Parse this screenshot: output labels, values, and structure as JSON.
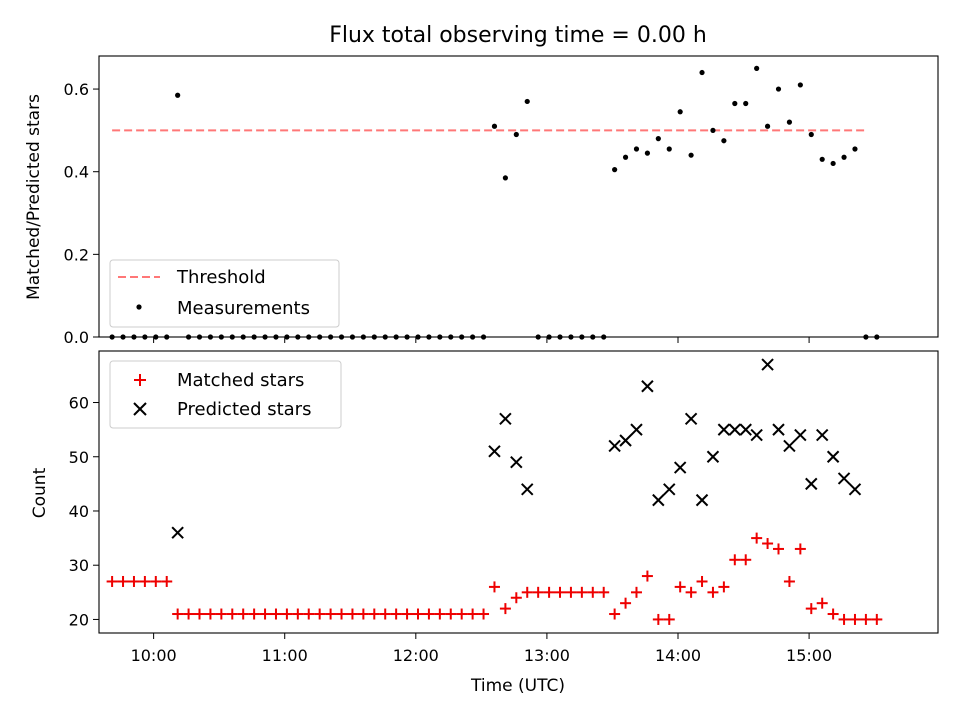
{
  "figure": {
    "title": "Flux total observing time = 0.00 h",
    "xlabel": "Time (UTC)",
    "x_ticks": [
      "10:00",
      "11:00",
      "12:00",
      "13:00",
      "14:00",
      "15:00"
    ],
    "colors": {
      "threshold": "#ff7777",
      "measurement": "#000000",
      "matched": "#ee0000",
      "predicted": "#000000"
    }
  },
  "chart_data": [
    {
      "type": "scatter",
      "panel": "top",
      "ylabel": "Matched/Predicted stars",
      "ylim": [
        0.0,
        0.68
      ],
      "xlim": [
        "09:35",
        "15:59"
      ],
      "y_ticks": [
        "0.0",
        "0.2",
        "0.4",
        "0.6"
      ],
      "legend": {
        "placement": "lower-left",
        "entries": [
          "Threshold",
          "Measurements"
        ]
      },
      "threshold": {
        "name": "Threshold",
        "value": 0.5,
        "x_range": [
          "09:41",
          "15:27"
        ]
      },
      "series": [
        {
          "name": "Measurements",
          "x": [
            "09:41",
            "09:46",
            "09:51",
            "09:56",
            "10:01",
            "10:06",
            "10:11",
            "10:16",
            "10:21",
            "10:26",
            "10:31",
            "10:36",
            "10:41",
            "10:46",
            "10:51",
            "10:56",
            "11:01",
            "11:06",
            "11:11",
            "11:16",
            "11:21",
            "11:26",
            "11:31",
            "11:36",
            "11:41",
            "11:46",
            "11:51",
            "11:56",
            "12:01",
            "12:06",
            "12:11",
            "12:16",
            "12:21",
            "12:26",
            "12:31",
            "12:36",
            "12:41",
            "12:46",
            "12:51",
            "12:56",
            "13:01",
            "13:06",
            "13:11",
            "13:16",
            "13:21",
            "13:26",
            "13:31",
            "13:36",
            "13:41",
            "13:46",
            "13:51",
            "13:56",
            "14:01",
            "14:06",
            "14:11",
            "14:16",
            "14:21",
            "14:26",
            "14:31",
            "14:36",
            "14:41",
            "14:46",
            "14:51",
            "14:56",
            "15:01",
            "15:06",
            "15:11",
            "15:16",
            "15:21",
            "15:26",
            "15:31"
          ],
          "y": [
            0,
            0,
            0,
            0,
            0,
            0,
            0.585,
            0,
            0,
            0,
            0,
            0,
            0,
            0,
            0,
            0,
            0,
            0,
            0,
            0,
            0,
            0,
            0,
            0,
            0,
            0,
            0,
            0,
            0,
            0,
            0,
            0,
            0,
            0,
            0,
            0.51,
            0.385,
            0.49,
            0.57,
            0,
            0,
            0,
            0,
            0,
            0,
            0,
            0.405,
            0.435,
            0.455,
            0.445,
            0.48,
            0.455,
            0.545,
            0.44,
            0.64,
            0.5,
            0.475,
            0.565,
            0.565,
            0.65,
            0.51,
            0.6,
            0.52,
            0.61,
            0.49,
            0.43,
            0.42,
            0.435,
            0.455,
            0,
            0
          ]
        }
      ]
    },
    {
      "type": "scatter",
      "panel": "bottom",
      "ylabel": "Count",
      "ylim": [
        17.5,
        69.5
      ],
      "xlim": [
        "09:35",
        "15:59"
      ],
      "y_ticks": [
        "20",
        "30",
        "40",
        "50",
        "60"
      ],
      "legend": {
        "placement": "top-left",
        "entries": [
          "Matched stars",
          "Predicted stars"
        ]
      },
      "series": [
        {
          "name": "Matched stars",
          "marker": "plus",
          "x": [
            "09:41",
            "09:46",
            "09:51",
            "09:56",
            "10:01",
            "10:06",
            "10:11",
            "10:16",
            "10:21",
            "10:26",
            "10:31",
            "10:36",
            "10:41",
            "10:46",
            "10:51",
            "10:56",
            "11:01",
            "11:06",
            "11:11",
            "11:16",
            "11:21",
            "11:26",
            "11:31",
            "11:36",
            "11:41",
            "11:46",
            "11:51",
            "11:56",
            "12:01",
            "12:06",
            "12:11",
            "12:16",
            "12:21",
            "12:26",
            "12:31",
            "12:36",
            "12:41",
            "12:46",
            "12:51",
            "12:56",
            "13:01",
            "13:06",
            "13:11",
            "13:16",
            "13:21",
            "13:26",
            "13:31",
            "13:36",
            "13:41",
            "13:46",
            "13:51",
            "13:56",
            "14:01",
            "14:06",
            "14:11",
            "14:16",
            "14:21",
            "14:26",
            "14:31",
            "14:36",
            "14:41",
            "14:46",
            "14:51",
            "14:56",
            "15:01",
            "15:06",
            "15:11",
            "15:16",
            "15:21",
            "15:26",
            "15:31"
          ],
          "y": [
            27,
            27,
            27,
            27,
            27,
            27,
            21,
            21,
            21,
            21,
            21,
            21,
            21,
            21,
            21,
            21,
            21,
            21,
            21,
            21,
            21,
            21,
            21,
            21,
            21,
            21,
            21,
            21,
            21,
            21,
            21,
            21,
            21,
            21,
            21,
            26,
            22,
            24,
            25,
            25,
            25,
            25,
            25,
            25,
            25,
            25,
            21,
            23,
            25,
            28,
            20,
            20,
            26,
            25,
            27,
            25,
            26,
            31,
            31,
            35,
            34,
            33,
            27,
            33,
            22,
            23,
            21,
            20,
            20,
            20,
            20
          ]
        },
        {
          "name": "Predicted stars",
          "marker": "x",
          "x": [
            "10:11",
            "12:36",
            "12:41",
            "12:46",
            "12:51",
            "13:31",
            "13:36",
            "13:41",
            "13:46",
            "13:51",
            "13:56",
            "14:01",
            "14:06",
            "14:11",
            "14:16",
            "14:21",
            "14:26",
            "14:31",
            "14:36",
            "14:41",
            "14:46",
            "14:51",
            "14:56",
            "15:01",
            "15:06",
            "15:11",
            "15:16",
            "15:21"
          ],
          "y": [
            36,
            51,
            57,
            49,
            44,
            52,
            53,
            55,
            63,
            42,
            44,
            48,
            57,
            42,
            50,
            55,
            55,
            55,
            54,
            67,
            55,
            52,
            54,
            45,
            54,
            50,
            46,
            44
          ]
        }
      ]
    }
  ]
}
